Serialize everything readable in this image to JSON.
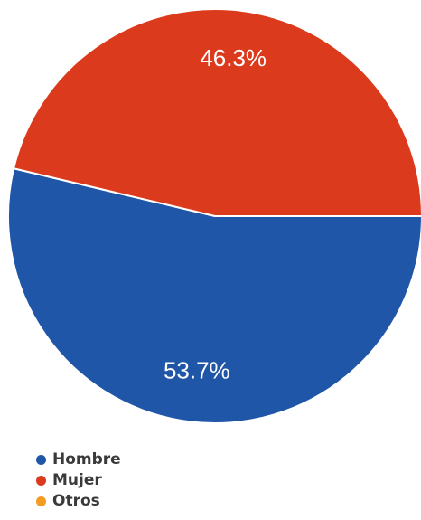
{
  "chart_data": {
    "type": "pie",
    "slices": [
      {
        "name": "Hombre",
        "value": 53.7,
        "label": "53.7%",
        "color": "#1f56a8"
      },
      {
        "name": "Mujer",
        "value": 46.3,
        "label": "46.3%",
        "color": "#dc3a1c"
      },
      {
        "name": "Otros",
        "value": 0,
        "label": "",
        "color": "#f59a23"
      }
    ],
    "legend_position": "bottom-left"
  },
  "legend": {
    "items": [
      {
        "label": "Hombre",
        "color": "#1f56a8"
      },
      {
        "label": "Mujer",
        "color": "#dc3a1c"
      },
      {
        "label": "Otros",
        "color": "#f59a23"
      }
    ]
  }
}
